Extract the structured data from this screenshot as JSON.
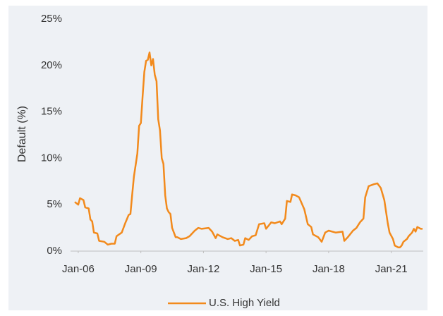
{
  "chart_data": {
    "type": "line",
    "y_axis_label": "Default (%)",
    "x": [
      "2005-11",
      "2006-01",
      "2006-02",
      "2006-04",
      "2006-05",
      "2006-07",
      "2006-08",
      "2006-09",
      "2006-10",
      "2006-12",
      "2007-01",
      "2007-04",
      "2007-06",
      "2007-08",
      "2007-10",
      "2007-11",
      "2008-02",
      "2008-04",
      "2008-06",
      "2008-07",
      "2008-08",
      "2008-09",
      "2008-11",
      "2008-12",
      "2009-01",
      "2009-02",
      "2009-03",
      "2009-04",
      "2009-05",
      "2009-06",
      "2009-07",
      "2009-08",
      "2009-09",
      "2009-10",
      "2009-11",
      "2009-12",
      "2010-01",
      "2010-02",
      "2010-03",
      "2010-04",
      "2010-05",
      "2010-06",
      "2010-07",
      "2010-09",
      "2010-10",
      "2010-12",
      "2011-03",
      "2011-05",
      "2011-08",
      "2011-10",
      "2011-12",
      "2012-04",
      "2012-06",
      "2012-08",
      "2012-09",
      "2012-12",
      "2013-03",
      "2013-05",
      "2013-07",
      "2013-09",
      "2013-10",
      "2013-12",
      "2014-01",
      "2014-03",
      "2014-05",
      "2014-07",
      "2014-09",
      "2014-12",
      "2015-01",
      "2015-04",
      "2015-06",
      "2015-09",
      "2015-10",
      "2015-12",
      "2016-01",
      "2016-03",
      "2016-04",
      "2016-06",
      "2016-08",
      "2016-11",
      "2017-01",
      "2017-03",
      "2017-04",
      "2017-07",
      "2017-09",
      "2017-11",
      "2018-01",
      "2018-05",
      "2018-09",
      "2018-10",
      "2018-12",
      "2019-03",
      "2019-05",
      "2019-07",
      "2019-09",
      "2019-10",
      "2019-12",
      "2020-03",
      "2020-05",
      "2020-07",
      "2020-09",
      "2020-11",
      "2020-12",
      "2021-02",
      "2021-03",
      "2021-05",
      "2021-06",
      "2021-07",
      "2021-08",
      "2021-10",
      "2021-11",
      "2022-01",
      "2022-02",
      "2022-03",
      "2022-04",
      "2022-06",
      "2022-07"
    ],
    "series": [
      {
        "name": "U.S. High Yield",
        "color": "#f28a1c",
        "values": [
          5.3,
          5.0,
          5.7,
          5.5,
          4.7,
          4.6,
          3.4,
          3.2,
          2.0,
          1.9,
          1.1,
          1.0,
          0.7,
          0.8,
          0.8,
          1.6,
          2.0,
          3.0,
          3.9,
          4.0,
          6.0,
          8.0,
          10.5,
          13.5,
          13.8,
          16.6,
          19.3,
          20.5,
          20.6,
          21.4,
          20.0,
          20.7,
          19.0,
          18.3,
          14.2,
          13.0,
          10.0,
          9.4,
          6.0,
          4.6,
          4.2,
          4.0,
          2.5,
          1.5,
          1.5,
          1.3,
          1.4,
          1.6,
          2.2,
          2.5,
          2.4,
          2.5,
          2.1,
          1.4,
          1.8,
          1.5,
          1.3,
          1.4,
          1.1,
          1.2,
          0.6,
          0.7,
          1.4,
          1.2,
          1.6,
          1.7,
          2.9,
          3.0,
          2.4,
          3.1,
          3.0,
          3.2,
          2.9,
          3.5,
          5.4,
          5.3,
          6.1,
          6.0,
          5.8,
          4.5,
          2.9,
          2.6,
          1.8,
          1.5,
          1.0,
          2.0,
          2.2,
          2.0,
          2.1,
          1.1,
          1.5,
          2.2,
          2.5,
          3.1,
          3.5,
          5.8,
          7.0,
          7.2,
          7.3,
          6.8,
          5.5,
          3.0,
          2.0,
          1.3,
          0.6,
          0.4,
          0.4,
          0.6,
          1.0,
          1.3,
          1.6,
          2.0,
          2.4,
          2.1,
          2.6,
          2.4,
          2.4
        ]
      }
    ],
    "xlim": [
      "2005-11",
      "2022-07"
    ],
    "xticks": [
      {
        "value": "2006-01",
        "label": "Jan-06"
      },
      {
        "value": "2009-01",
        "label": "Jan-09"
      },
      {
        "value": "2012-01",
        "label": "Jan-12"
      },
      {
        "value": "2015-01",
        "label": "Jan-15"
      },
      {
        "value": "2018-01",
        "label": "Jan-18"
      },
      {
        "value": "2021-01",
        "label": "Jan-21"
      }
    ],
    "ylim": [
      0,
      25
    ],
    "yticks": [
      {
        "value": 0,
        "label": "0%"
      },
      {
        "value": 5,
        "label": "5%"
      },
      {
        "value": 10,
        "label": "10%"
      },
      {
        "value": 15,
        "label": "15%"
      },
      {
        "value": 20,
        "label": "20%"
      },
      {
        "value": 25,
        "label": "25%"
      }
    ],
    "legend": "bottom"
  }
}
